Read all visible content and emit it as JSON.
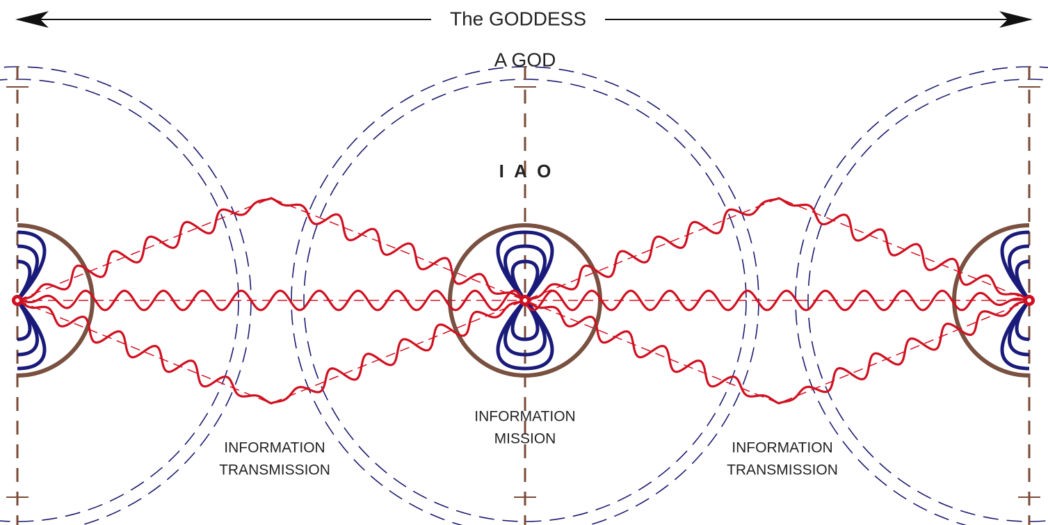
{
  "title": "The GODDESS",
  "center_label": "A GOD",
  "core_label": "I A O",
  "labels": [
    {
      "lines": [
        "INFORMATION",
        "TRANSMISSION"
      ]
    },
    {
      "lines": [
        "INFORMATION",
        "MISSION"
      ]
    },
    {
      "lines": [
        "INFORMATION",
        "TRANSMISSION"
      ]
    }
  ]
}
